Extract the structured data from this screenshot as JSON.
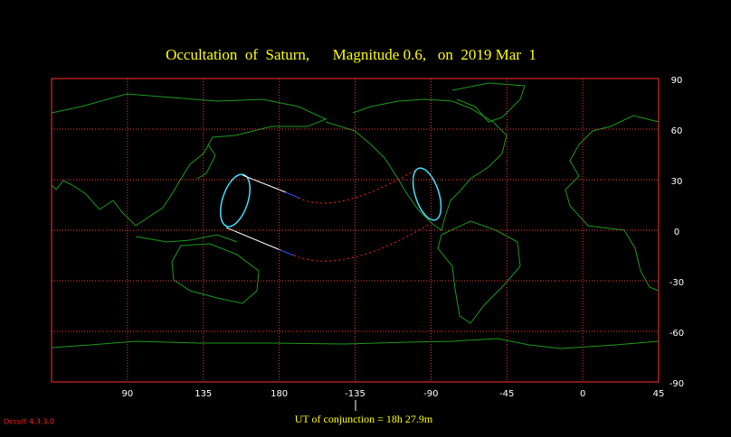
{
  "chart_data": {
    "type": "map",
    "title": "Occultation  of  Saturn,      Magnitude 0.6,   on  2019 Mar  1",
    "annotation": "UT of conjunction = 18h 27.9m",
    "footer": "Occult 4.3.3.0",
    "xlim": [
      45,
      405
    ],
    "xticks": [
      90,
      135,
      180,
      {
        "value": 225,
        "label": "-135"
      },
      {
        "value": 270,
        "label": "-90"
      },
      {
        "value": 315,
        "label": "-45"
      },
      {
        "value": 360,
        "label": "0"
      },
      {
        "value": 405,
        "label": "45"
      }
    ],
    "ylim": [
      -90,
      90
    ],
    "yticks": [
      90,
      60,
      30,
      0,
      -30,
      -60,
      -90
    ],
    "grid": true
  }
}
